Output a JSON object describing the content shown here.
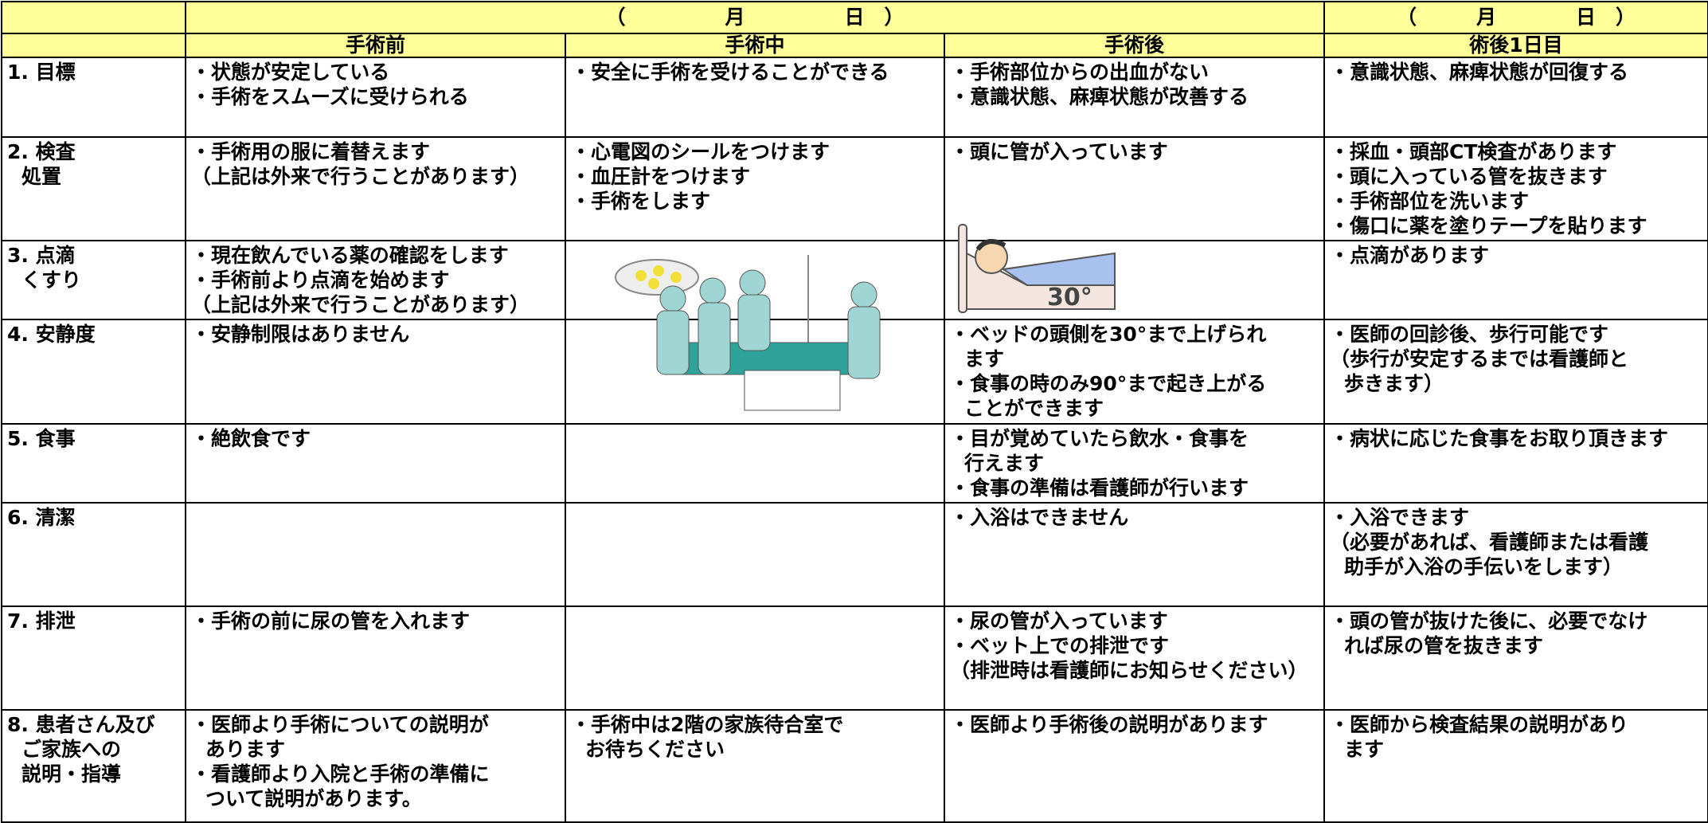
{
  "header": {
    "date_label": "（　　　　　月　　　　　日　）",
    "date_label_day1": "（　　　月　　　　日　）",
    "columns": [
      "手術前",
      "手術中",
      "手術後",
      "術後1日目"
    ]
  },
  "rows": [
    {
      "label": [
        "1. 目標"
      ],
      "cells": [
        [
          "・状態が安定している",
          "・手術をスムーズに受けられる"
        ],
        [
          "・安全に手術を受けることができる"
        ],
        [
          "・手術部位からの出血がない",
          "・意識状態、麻痺状態が改善する"
        ],
        [
          "・意識状態、麻痺状態が回復する"
        ]
      ]
    },
    {
      "label": [
        "2. 検査",
        "処置"
      ],
      "cells": [
        [
          "・手術用の服に着替えます",
          "（上記は外来で行うことがあります）"
        ],
        [
          "・心電図のシールをつけます",
          "・血圧計をつけます",
          "・手術をします"
        ],
        [
          "・頭に管が入っています"
        ],
        [
          "・採血・頭部CT検査があります",
          "・頭に入っている管を抜きます",
          "・手術部位を洗います",
          "・傷口に薬を塗りテープを貼ります"
        ]
      ]
    },
    {
      "label": [
        "3. 点滴",
        "くすり"
      ],
      "cells": [
        [
          "・現在飲んでいる薬の確認をします",
          "・手術前より点滴を始めます",
          "（上記は外来で行うことがあります）"
        ],
        [],
        [],
        [
          "・点滴があります"
        ]
      ]
    },
    {
      "label": [
        "4. 安静度"
      ],
      "cells": [
        [
          "・安静制限はありません"
        ],
        [],
        [
          "・ベッドの頭側を30°まで上げられ",
          "ます",
          "・食事の時のみ90°まで起き上がる",
          "ことができます"
        ],
        [
          "・医師の回診後、歩行可能です",
          "（歩行が安定するまでは看護師と",
          "歩きます）"
        ]
      ]
    },
    {
      "label": [
        "5. 食事"
      ],
      "cells": [
        [
          "・絶飲食です"
        ],
        [],
        [
          "・目が覚めていたら飲水・食事を",
          "行えます",
          "・食事の準備は看護師が行います"
        ],
        [
          "・病状に応じた食事をお取り頂きます"
        ]
      ]
    },
    {
      "label": [
        "6. 清潔"
      ],
      "cells": [
        [],
        [],
        [
          "・入浴はできません"
        ],
        [
          "・入浴できます",
          "（必要があれば、看護師または看護",
          "助手が入浴の手伝いをします）"
        ]
      ]
    },
    {
      "label": [
        "7. 排泄"
      ],
      "cells": [
        [
          "・手術の前に尿の管を入れます"
        ],
        [],
        [
          "・尿の管が入っています",
          "・ベット上での排泄です",
          "（排泄時は看護師にお知らせください）"
        ],
        [
          "・頭の管が抜けた後に、必要でなけ",
          "れば尿の管を抜きます"
        ]
      ]
    },
    {
      "label": [
        "8. 患者さん及び",
        "ご家族への",
        "説明・指導"
      ],
      "cells": [
        [
          "・医師より手術についての説明が",
          "あります",
          "・看護師より入院と手術の準備に",
          "ついて説明があります。"
        ],
        [
          "・手術中は2階の家族待合室で",
          "お待ちください"
        ],
        [
          "・医師より手術後の説明があります"
        ],
        [
          "・医師から検査結果の説明があり",
          "ます"
        ]
      ]
    }
  ],
  "bed_illustration_label": "30°"
}
